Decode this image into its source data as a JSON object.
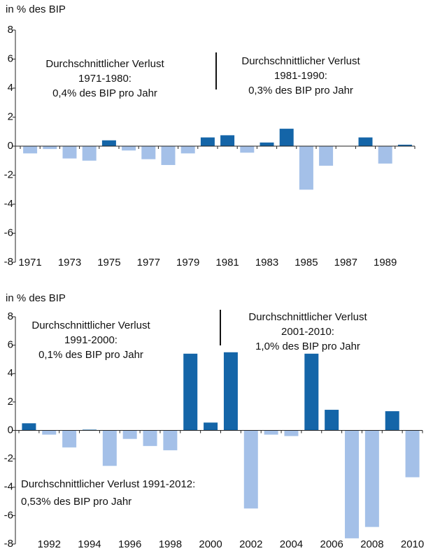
{
  "chart_data": [
    {
      "type": "bar",
      "y_label": "in % des BIP",
      "categories": [
        "1971",
        null,
        "1973",
        null,
        "1975",
        null,
        "1977",
        null,
        "1979",
        null,
        "1981",
        null,
        "1983",
        null,
        "1985",
        null,
        "1987",
        null,
        "1989",
        null
      ],
      "values": [
        -0.5,
        -0.2,
        -0.85,
        -1.0,
        0.4,
        -0.3,
        -0.9,
        -1.3,
        -0.5,
        0.6,
        0.75,
        -0.45,
        0.25,
        1.2,
        -3.0,
        -1.35,
        0,
        0.6,
        -1.2,
        0.1
      ],
      "positive_color": "#1465a8",
      "negative_color": "#a4c0e8",
      "ylim": [
        -8,
        8
      ],
      "yticks": [
        -8,
        -6,
        -4,
        -2,
        0,
        2,
        4,
        6,
        8
      ],
      "annotations": [
        {
          "lines": [
            "Durchschnittlicher Verlust",
            "1971-1980:",
            "0,4% des BIP pro Jahr"
          ]
        },
        {
          "lines": [
            "Durchschnittlicher Verlust",
            "1981-1990:",
            "0,3% des BIP pro Jahr"
          ]
        }
      ]
    },
    {
      "type": "bar",
      "y_label": "in % des BIP",
      "categories": [
        null,
        "1992",
        null,
        "1994",
        null,
        "1996",
        null,
        "1998",
        null,
        "2000",
        null,
        "2002",
        null,
        "2004",
        null,
        "2006",
        null,
        "2008",
        null,
        "2010"
      ],
      "values": [
        0.5,
        -0.3,
        -1.2,
        0.05,
        -2.5,
        -0.6,
        -1.1,
        -1.4,
        5.4,
        0.55,
        5.5,
        -5.5,
        -0.3,
        -0.4,
        5.4,
        1.45,
        -7.6,
        -6.8,
        1.35,
        -3.3
      ],
      "positive_color": "#1465a8",
      "negative_color": "#a4c0e8",
      "ylim": [
        -8,
        8
      ],
      "yticks": [
        -8,
        -6,
        -4,
        -2,
        0,
        2,
        4,
        6,
        8
      ],
      "annotations": [
        {
          "lines": [
            "Durchschnittlicher Verlust",
            "1991-2000:",
            "0,1% des BIP pro Jahr"
          ]
        },
        {
          "lines": [
            "Durchschnittlicher Verlust",
            "2001-2010:",
            "1,0% des BIP pro Jahr"
          ]
        },
        {
          "lines": [
            "Durchschnittlicher Verlust 1991-2012:",
            "0,53% des BIP pro Jahr"
          ]
        }
      ]
    }
  ]
}
